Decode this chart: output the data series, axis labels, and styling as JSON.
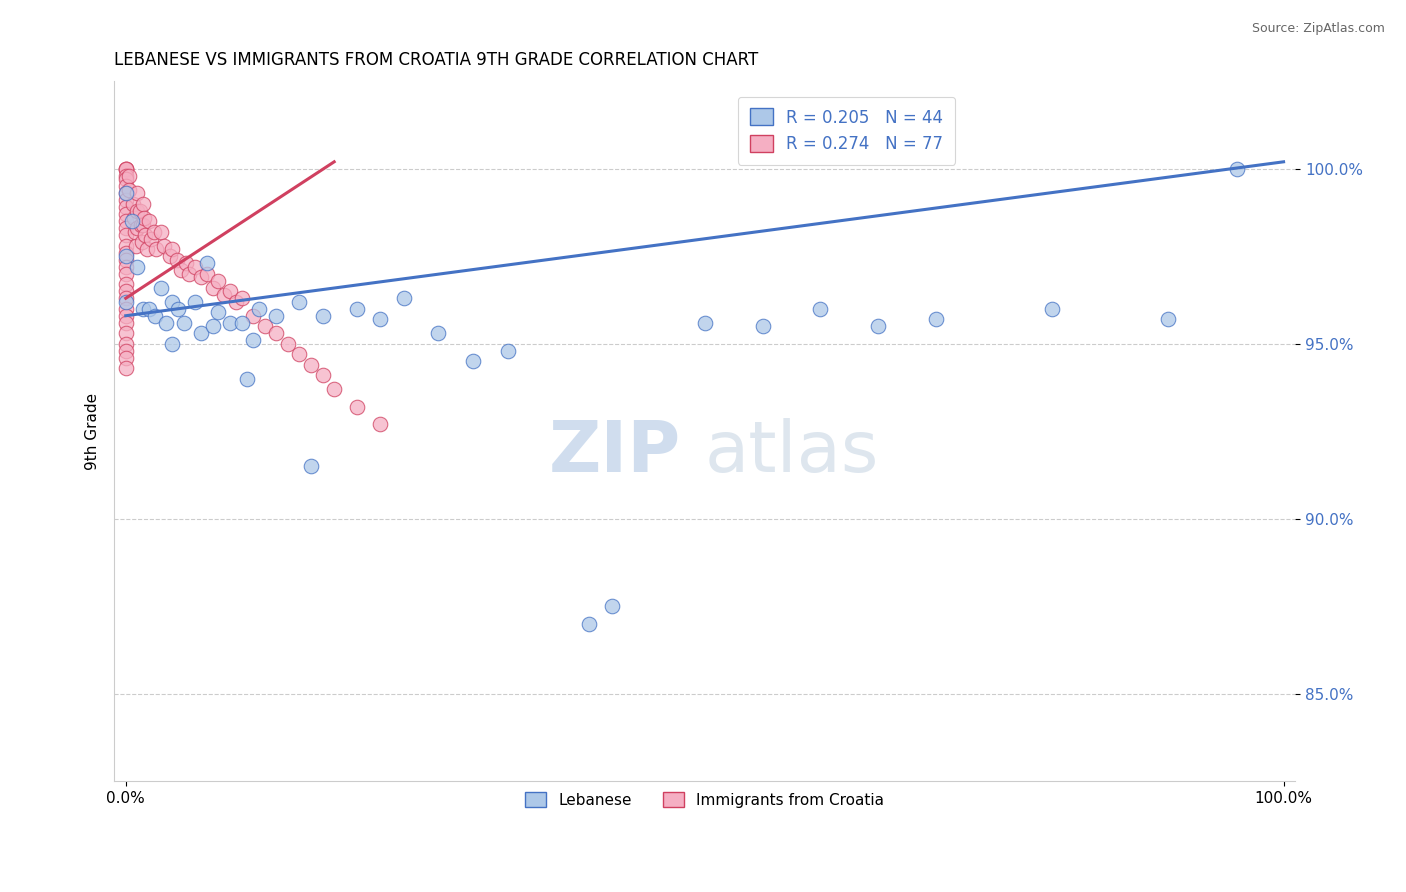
{
  "title": "LEBANESE VS IMMIGRANTS FROM CROATIA 9TH GRADE CORRELATION CHART",
  "source": "Source: ZipAtlas.com",
  "ylabel": "9th Grade",
  "xlim": [
    -0.01,
    1.01
  ],
  "ylim": [
    0.825,
    1.025
  ],
  "yticks": [
    0.85,
    0.9,
    0.95,
    1.0
  ],
  "ytick_labels": [
    "85.0%",
    "90.0%",
    "95.0%",
    "100.0%"
  ],
  "xtick_vals": [
    0.0,
    1.0
  ],
  "xtick_labels": [
    "0.0%",
    "100.0%"
  ],
  "legend_labels": [
    "Lebanese",
    "Immigrants from Croatia"
  ],
  "R_lebanese": 0.205,
  "N_lebanese": 44,
  "R_croatia": 0.274,
  "N_croatia": 77,
  "blue_color": "#adc8e8",
  "pink_color": "#f5afc3",
  "trend_blue": "#4472c4",
  "trend_pink": "#d04060",
  "watermark_zip": "ZIP",
  "watermark_atlas": "atlas",
  "blue_trend_x0": 0.0,
  "blue_trend_y0": 0.958,
  "blue_trend_x1": 1.0,
  "blue_trend_y1": 1.002,
  "pink_trend_x0": 0.0,
  "pink_trend_y0": 0.963,
  "pink_trend_x1": 0.18,
  "pink_trend_y1": 1.002,
  "blue_points_x": [
    0.0,
    0.0,
    0.0,
    0.005,
    0.01,
    0.015,
    0.02,
    0.025,
    0.03,
    0.035,
    0.04,
    0.04,
    0.045,
    0.05,
    0.06,
    0.065,
    0.07,
    0.075,
    0.08,
    0.09,
    0.1,
    0.105,
    0.11,
    0.115,
    0.13,
    0.15,
    0.16,
    0.17,
    0.2,
    0.22,
    0.24,
    0.27,
    0.3,
    0.33,
    0.4,
    0.42,
    0.5,
    0.55,
    0.6,
    0.65,
    0.7,
    0.8,
    0.9,
    0.96
  ],
  "blue_points_y": [
    0.993,
    0.975,
    0.962,
    0.985,
    0.972,
    0.96,
    0.96,
    0.958,
    0.966,
    0.956,
    0.962,
    0.95,
    0.96,
    0.956,
    0.962,
    0.953,
    0.973,
    0.955,
    0.959,
    0.956,
    0.956,
    0.94,
    0.951,
    0.96,
    0.958,
    0.962,
    0.915,
    0.958,
    0.96,
    0.957,
    0.963,
    0.953,
    0.945,
    0.948,
    0.87,
    0.875,
    0.956,
    0.955,
    0.96,
    0.955,
    0.957,
    0.96,
    0.957,
    1.0
  ],
  "pink_points_x": [
    0.0,
    0.0,
    0.0,
    0.0,
    0.0,
    0.0,
    0.0,
    0.0,
    0.0,
    0.0,
    0.0,
    0.0,
    0.0,
    0.0,
    0.0,
    0.0,
    0.0,
    0.0,
    0.0,
    0.0,
    0.0,
    0.0,
    0.0,
    0.0,
    0.0,
    0.0,
    0.0,
    0.0,
    0.0,
    0.003,
    0.003,
    0.006,
    0.007,
    0.008,
    0.009,
    0.01,
    0.01,
    0.01,
    0.012,
    0.013,
    0.014,
    0.015,
    0.015,
    0.016,
    0.017,
    0.018,
    0.02,
    0.022,
    0.024,
    0.026,
    0.03,
    0.033,
    0.038,
    0.04,
    0.044,
    0.048,
    0.052,
    0.055,
    0.06,
    0.065,
    0.07,
    0.075,
    0.08,
    0.085,
    0.09,
    0.095,
    0.1,
    0.11,
    0.12,
    0.13,
    0.14,
    0.15,
    0.16,
    0.17,
    0.18,
    0.2,
    0.22
  ],
  "pink_points_y": [
    1.0,
    1.0,
    1.0,
    0.998,
    0.997,
    0.995,
    0.993,
    0.991,
    0.989,
    0.987,
    0.985,
    0.983,
    0.981,
    0.978,
    0.976,
    0.974,
    0.972,
    0.97,
    0.967,
    0.965,
    0.963,
    0.96,
    0.958,
    0.956,
    0.953,
    0.95,
    0.948,
    0.946,
    0.943,
    0.998,
    0.994,
    0.99,
    0.986,
    0.982,
    0.978,
    0.993,
    0.988,
    0.983,
    0.988,
    0.984,
    0.979,
    0.99,
    0.984,
    0.986,
    0.981,
    0.977,
    0.985,
    0.98,
    0.982,
    0.977,
    0.982,
    0.978,
    0.975,
    0.977,
    0.974,
    0.971,
    0.973,
    0.97,
    0.972,
    0.969,
    0.97,
    0.966,
    0.968,
    0.964,
    0.965,
    0.962,
    0.963,
    0.958,
    0.955,
    0.953,
    0.95,
    0.947,
    0.944,
    0.941,
    0.937,
    0.932,
    0.927
  ]
}
